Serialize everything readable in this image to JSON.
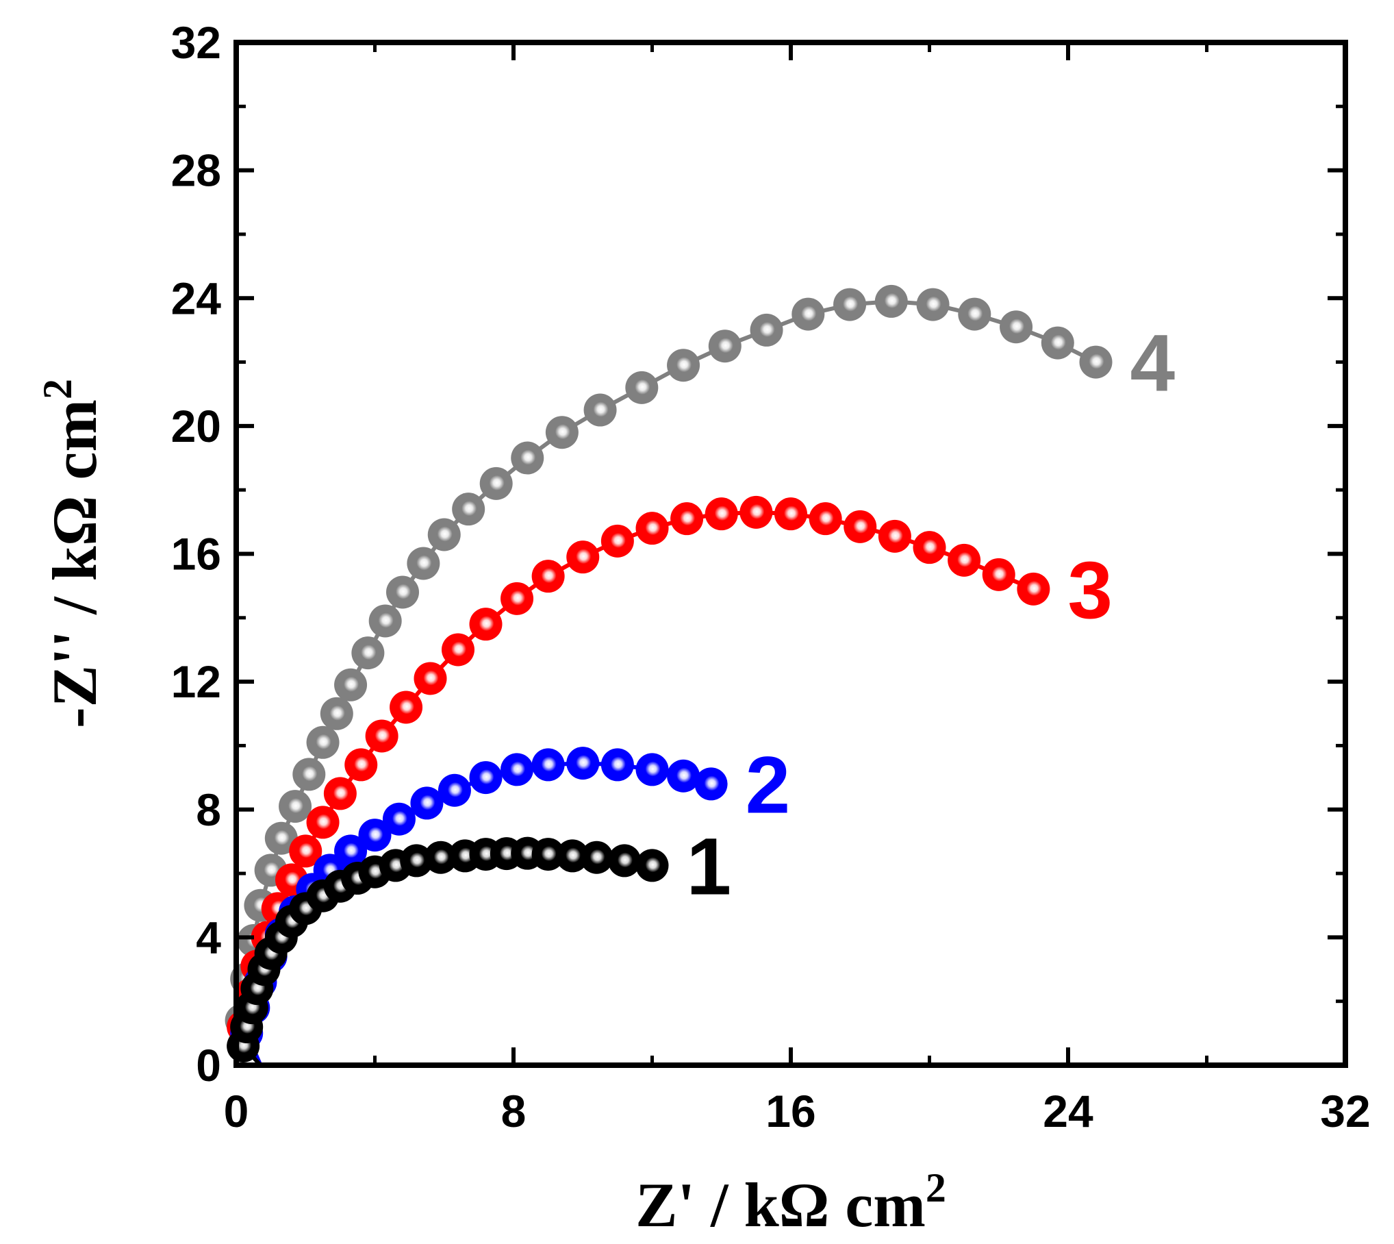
{
  "chart_data": {
    "type": "scatter",
    "title": "",
    "xlabel": "Z' / kΩ cm",
    "xlabel_sup": "2",
    "ylabel": "-Z'' / kΩ cm",
    "ylabel_sup": "2",
    "xlim": [
      0,
      32
    ],
    "ylim": [
      0,
      32
    ],
    "xticks": [
      0,
      8,
      16,
      24,
      32
    ],
    "yticks": [
      0,
      4,
      8,
      12,
      16,
      20,
      24,
      28,
      32
    ],
    "xtick_labels": [
      "0",
      "8",
      "16",
      "24",
      "32"
    ],
    "ytick_labels": [
      "0",
      "4",
      "8",
      "12",
      "16",
      "20",
      "24",
      "28",
      "32"
    ],
    "grid": false,
    "series": [
      {
        "name": "1",
        "label": "1",
        "color": "#000000",
        "x": [
          0.2,
          0.3,
          0.45,
          0.6,
          0.8,
          1.0,
          1.3,
          1.6,
          2.0,
          2.5,
          3.0,
          3.5,
          4.0,
          4.6,
          5.2,
          5.9,
          6.6,
          7.2,
          7.8,
          8.4,
          9.0,
          9.7,
          10.4,
          11.2,
          12.0
        ],
        "y": [
          0.6,
          1.2,
          1.8,
          2.4,
          3.0,
          3.5,
          4.0,
          4.5,
          4.9,
          5.3,
          5.6,
          5.85,
          6.05,
          6.25,
          6.4,
          6.5,
          6.55,
          6.6,
          6.62,
          6.63,
          6.6,
          6.55,
          6.5,
          6.4,
          6.25
        ]
      },
      {
        "name": "2",
        "label": "2",
        "color": "#0000ff",
        "x": [
          0.3,
          0.5,
          0.7,
          1.0,
          1.3,
          1.7,
          2.2,
          2.7,
          3.3,
          4.0,
          4.7,
          5.5,
          6.3,
          7.2,
          8.1,
          9.0,
          10.0,
          11.0,
          12.0,
          12.9,
          13.7
        ],
        "y": [
          1.0,
          1.8,
          2.6,
          3.4,
          4.1,
          4.8,
          5.5,
          6.1,
          6.7,
          7.2,
          7.7,
          8.2,
          8.6,
          9.0,
          9.25,
          9.4,
          9.45,
          9.4,
          9.25,
          9.05,
          8.8
        ]
      },
      {
        "name": "3",
        "label": "3",
        "color": "#ff0000",
        "x": [
          0.2,
          0.4,
          0.6,
          0.9,
          1.2,
          1.6,
          2.0,
          2.5,
          3.0,
          3.6,
          4.2,
          4.9,
          5.6,
          6.4,
          7.2,
          8.1,
          9.0,
          10.0,
          11.0,
          12.0,
          13.0,
          14.0,
          15.0,
          16.0,
          17.0,
          18.0,
          19.0,
          20.0,
          21.0,
          22.0,
          23.0
        ],
        "y": [
          1.2,
          2.2,
          3.1,
          4.0,
          4.9,
          5.8,
          6.7,
          7.6,
          8.5,
          9.4,
          10.3,
          11.2,
          12.1,
          13.0,
          13.8,
          14.6,
          15.3,
          15.9,
          16.4,
          16.8,
          17.1,
          17.25,
          17.3,
          17.25,
          17.1,
          16.85,
          16.55,
          16.2,
          15.8,
          15.35,
          14.9
        ]
      },
      {
        "name": "4",
        "label": "4",
        "color": "#808080",
        "x": [
          0.15,
          0.3,
          0.5,
          0.7,
          1.0,
          1.3,
          1.7,
          2.1,
          2.5,
          2.9,
          3.3,
          3.8,
          4.3,
          4.8,
          5.4,
          6.0,
          6.7,
          7.5,
          8.4,
          9.4,
          10.5,
          11.7,
          12.9,
          14.1,
          15.3,
          16.5,
          17.7,
          18.9,
          20.1,
          21.3,
          22.5,
          23.7,
          24.8
        ],
        "y": [
          1.4,
          2.7,
          3.9,
          5.0,
          6.1,
          7.1,
          8.1,
          9.1,
          10.1,
          11.0,
          11.9,
          12.9,
          13.9,
          14.8,
          15.7,
          16.6,
          17.4,
          18.2,
          19.0,
          19.8,
          20.5,
          21.2,
          21.9,
          22.5,
          23.0,
          23.5,
          23.8,
          23.9,
          23.8,
          23.5,
          23.1,
          22.6,
          22.0
        ]
      }
    ]
  }
}
